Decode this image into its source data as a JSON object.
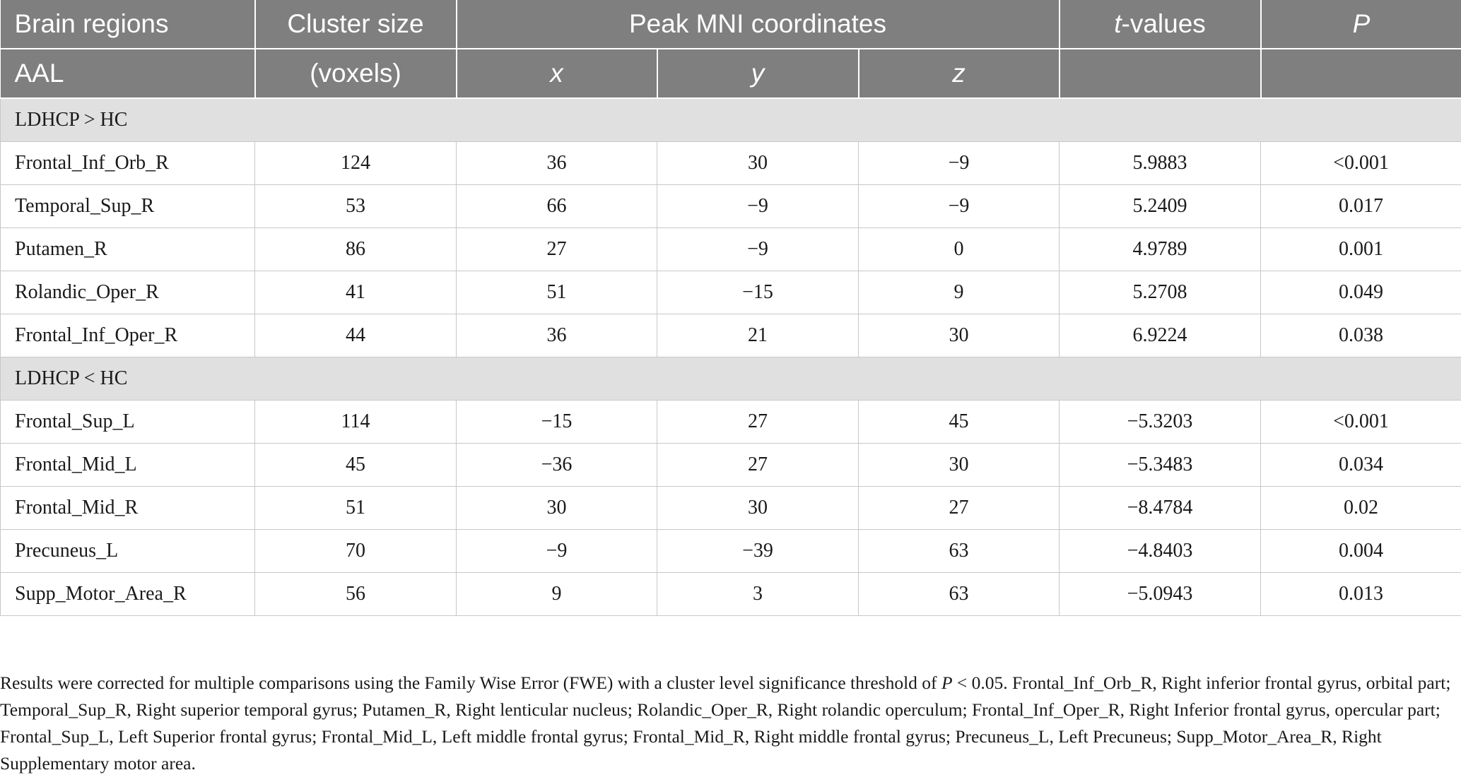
{
  "table": {
    "header1": {
      "brain_regions": "Brain regions",
      "cluster_size": "Cluster size",
      "peak_mni": "Peak MNI coordinates",
      "t_values_italic": "t",
      "t_values_rest": "-values",
      "p": "P"
    },
    "header2": {
      "aal": "AAL",
      "voxels": "(voxels)",
      "x": "x",
      "y": "y",
      "z": "z"
    },
    "sections": [
      {
        "label": "LDHCP > HC",
        "rows": [
          {
            "region": "Frontal_Inf_Orb_R",
            "cluster": "124",
            "x": "36",
            "y": "30",
            "z": "−9",
            "t": "5.9883",
            "p": "<0.001"
          },
          {
            "region": "Temporal_Sup_R",
            "cluster": "53",
            "x": "66",
            "y": "−9",
            "z": "−9",
            "t": "5.2409",
            "p": "0.017"
          },
          {
            "region": "Putamen_R",
            "cluster": "86",
            "x": "27",
            "y": "−9",
            "z": "0",
            "t": "4.9789",
            "p": "0.001"
          },
          {
            "region": "Rolandic_Oper_R",
            "cluster": "41",
            "x": "51",
            "y": "−15",
            "z": "9",
            "t": "5.2708",
            "p": "0.049"
          },
          {
            "region": "Frontal_Inf_Oper_R",
            "cluster": "44",
            "x": "36",
            "y": "21",
            "z": "30",
            "t": "6.9224",
            "p": "0.038"
          }
        ]
      },
      {
        "label": "LDHCP < HC",
        "rows": [
          {
            "region": "Frontal_Sup_L",
            "cluster": "114",
            "x": "−15",
            "y": "27",
            "z": "45",
            "t": "−5.3203",
            "p": "<0.001"
          },
          {
            "region": "Frontal_Mid_L",
            "cluster": "45",
            "x": "−36",
            "y": "27",
            "z": "30",
            "t": "−5.3483",
            "p": "0.034"
          },
          {
            "region": "Frontal_Mid_R",
            "cluster": "51",
            "x": "30",
            "y": "30",
            "z": "27",
            "t": "−8.4784",
            "p": "0.02"
          },
          {
            "region": "Precuneus_L",
            "cluster": "70",
            "x": "−9",
            "y": "−39",
            "z": "63",
            "t": "−4.8403",
            "p": "0.004"
          },
          {
            "region": "Supp_Motor_Area_R",
            "cluster": "56",
            "x": "9",
            "y": "3",
            "z": "63",
            "t": "−5.0943",
            "p": "0.013"
          }
        ]
      }
    ]
  },
  "footnote": {
    "part1": "Results were corrected for multiple comparisons using the Family Wise Error (FWE) with a cluster level significance threshold of ",
    "p_italic": "P",
    "part2": " < 0.05. Frontal_Inf_Orb_R, Right inferior frontal gyrus, orbital part; Temporal_Sup_R, Right superior temporal gyrus; Putamen_R, Right lenticular nucleus; Rolandic_Oper_R, Right rolandic operculum; Frontal_Inf_Oper_R, Right Inferior frontal gyrus, opercular part; Frontal_Sup_L, Left Superior frontal gyrus; Frontal_Mid_L, Left middle frontal gyrus; Frontal_Mid_R, Right middle frontal gyrus; Precuneus_L, Left Precuneus; Supp_Motor_Area_R, Right Supplementary motor area."
  },
  "colors": {
    "header_bg": "#7f7f7f",
    "section_bg": "#e0e0e0",
    "grid": "#c8c8c8"
  }
}
